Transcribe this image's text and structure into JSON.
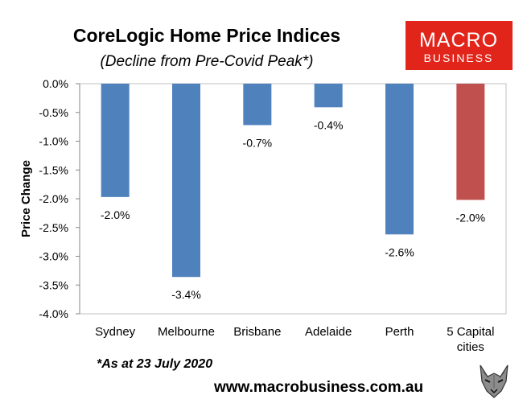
{
  "chart_data": {
    "type": "bar",
    "title": "CoreLogic Home Price Indices",
    "subtitle": "(Decline from Pre-Covid Peak*)",
    "ylabel": "Price Change",
    "xlabel": "",
    "ylim": [
      -4.0,
      0.0
    ],
    "yticks": [
      0.0,
      -0.5,
      -1.0,
      -1.5,
      -2.0,
      -2.5,
      -3.0,
      -3.5,
      -4.0
    ],
    "ytick_labels": [
      "0.0%",
      "-0.5%",
      "-1.0%",
      "-1.5%",
      "-2.0%",
      "-2.5%",
      "-3.0%",
      "-3.5%",
      "-4.0%"
    ],
    "categories": [
      [
        "Sydney"
      ],
      [
        "Melbourne"
      ],
      [
        "Brisbane"
      ],
      [
        "Adelaide"
      ],
      [
        "Perth"
      ],
      [
        "5 Capital",
        "cities"
      ]
    ],
    "values": [
      -1.97,
      -3.36,
      -0.72,
      -0.41,
      -2.62,
      -2.02
    ],
    "data_labels": [
      "-2.0%",
      "-3.4%",
      "-0.7%",
      "-0.4%",
      "-2.6%",
      "-2.0%"
    ],
    "bar_colors": [
      "#4f81bd",
      "#4f81bd",
      "#4f81bd",
      "#4f81bd",
      "#4f81bd",
      "#c0504d"
    ],
    "grid": false,
    "legend": "none"
  },
  "footnote": "*As at 23 July 2020",
  "website": "www.macrobusiness.com.au",
  "logo": {
    "line1": "MACRO",
    "line2": "BUSINESS",
    "bg_color": "#e1251b",
    "icon": "wolf-icon"
  },
  "colors": {
    "plot_border": "#bfbfbf",
    "axis": "#868686"
  }
}
